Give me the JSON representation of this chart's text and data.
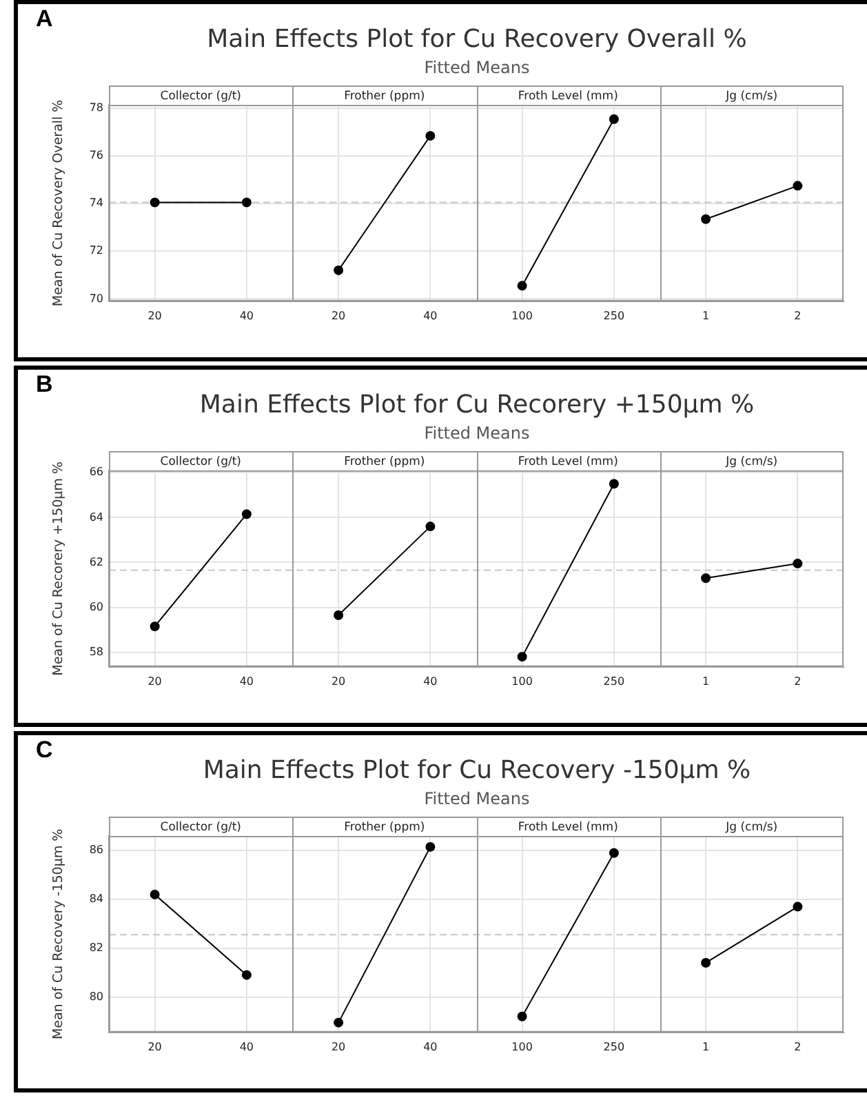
{
  "chart_data": [
    {
      "type": "line",
      "title": "Main Effects Plot for Cu Recovery Overall %",
      "subtitle": "Fitted Means",
      "annotations": [
        "A",
        "Collector (g/t)",
        "Frother (ppm)",
        "Froth Level (mm)",
        "Jg (cm/s)"
      ],
      "ylabel": "Mean of Cu Recovery Overall %",
      "categories": [
        "20",
        "40",
        "20",
        "40",
        "100",
        "250",
        "1",
        "2"
      ],
      "series": [
        {
          "color": "#000000",
          "values": [
            74.05,
            74.05,
            null,
            null,
            null,
            null,
            null,
            null
          ]
        },
        {
          "color": "#000000",
          "values": [
            null,
            null,
            71.2,
            76.85,
            null,
            null,
            null,
            null
          ]
        },
        {
          "color": "#000000",
          "values": [
            null,
            null,
            null,
            null,
            70.55,
            77.55,
            null,
            null
          ]
        },
        {
          "color": "#000000",
          "values": [
            null,
            null,
            null,
            null,
            null,
            null,
            73.35,
            74.75
          ]
        }
      ],
      "ylim": [
        69.9,
        78.15
      ],
      "yticks": [
        70,
        72,
        74,
        76,
        78
      ],
      "ref_lines": [
        {
          "axis": "y",
          "value": 74.05,
          "label": null
        }
      ],
      "grid": true,
      "legend": false,
      "marker": "circle"
    },
    {
      "type": "line",
      "title": "Main Effects Plot for Cu Recorery +150µm %",
      "subtitle": "Fitted Means",
      "annotations": [
        "B",
        "Collector (g/t)",
        "Frother (ppm)",
        "Froth Level (mm)",
        "Jg (cm/s)"
      ],
      "ylabel": "Mean of Cu Recorery +150µm %",
      "categories": [
        "20",
        "40",
        "20",
        "40",
        "100",
        "250",
        "1",
        "2"
      ],
      "series": [
        {
          "color": "#000000",
          "values": [
            59.15,
            64.15,
            null,
            null,
            null,
            null,
            null,
            null
          ]
        },
        {
          "color": "#000000",
          "values": [
            null,
            null,
            59.65,
            63.6,
            null,
            null,
            null,
            null
          ]
        },
        {
          "color": "#000000",
          "values": [
            null,
            null,
            null,
            null,
            57.8,
            65.5,
            null,
            null
          ]
        },
        {
          "color": "#000000",
          "values": [
            null,
            null,
            null,
            null,
            null,
            null,
            61.3,
            61.95
          ]
        }
      ],
      "ylim": [
        57.35,
        66.1
      ],
      "yticks": [
        58,
        60,
        62,
        64,
        66
      ],
      "ref_lines": [
        {
          "axis": "y",
          "value": 61.65,
          "label": null
        }
      ],
      "grid": true,
      "legend": false,
      "marker": "circle"
    },
    {
      "type": "line",
      "title": "Main Effects Plot for Cu Recovery -150µm %",
      "subtitle": "Fitted Means",
      "annotations": [
        "C",
        "Collector (g/t)",
        "Frother (ppm)",
        "Froth Level (mm)",
        "Jg (cm/s)"
      ],
      "ylabel": "Mean of Cu Recovery -150µm %",
      "categories": [
        "20",
        "40",
        "20",
        "40",
        "100",
        "250",
        "1",
        "2"
      ],
      "series": [
        {
          "color": "#000000",
          "values": [
            84.2,
            80.9,
            null,
            null,
            null,
            null,
            null,
            null
          ]
        },
        {
          "color": "#000000",
          "values": [
            null,
            null,
            78.95,
            86.15,
            null,
            null,
            null,
            null
          ]
        },
        {
          "color": "#000000",
          "values": [
            null,
            null,
            null,
            null,
            79.2,
            85.9,
            null,
            null
          ]
        },
        {
          "color": "#000000",
          "values": [
            null,
            null,
            null,
            null,
            null,
            null,
            81.4,
            83.7
          ]
        }
      ],
      "ylim": [
        78.55,
        86.6
      ],
      "yticks": [
        80,
        82,
        84,
        86
      ],
      "ref_lines": [
        {
          "axis": "y",
          "value": 82.55,
          "label": null
        }
      ],
      "grid": true,
      "legend": false,
      "marker": "circle"
    }
  ]
}
